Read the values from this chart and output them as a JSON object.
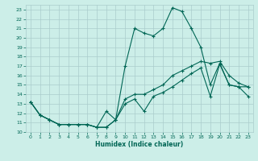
{
  "xlabel": "Humidex (Indice chaleur)",
  "background_color": "#cceee8",
  "grid_color": "#aacccc",
  "line_color": "#006655",
  "xlim": [
    -0.5,
    23.5
  ],
  "ylim": [
    10,
    23.5
  ],
  "yticks": [
    10,
    11,
    12,
    13,
    14,
    15,
    16,
    17,
    18,
    19,
    20,
    21,
    22,
    23
  ],
  "xticks": [
    0,
    1,
    2,
    3,
    4,
    5,
    6,
    7,
    8,
    9,
    10,
    11,
    12,
    13,
    14,
    15,
    16,
    17,
    18,
    19,
    20,
    21,
    22,
    23
  ],
  "line1_x": [
    0,
    1,
    2,
    3,
    4,
    5,
    6,
    7,
    8,
    9,
    10,
    11,
    12,
    13,
    14,
    15,
    16,
    17,
    18,
    19,
    20,
    21,
    22,
    23
  ],
  "line1_y": [
    13.2,
    11.8,
    11.3,
    10.8,
    10.8,
    10.8,
    10.8,
    10.5,
    10.5,
    11.3,
    17.0,
    21.0,
    20.5,
    20.2,
    21.0,
    23.2,
    22.8,
    21.0,
    19.0,
    15.0,
    17.3,
    15.0,
    14.8,
    14.8
  ],
  "line2_x": [
    0,
    1,
    2,
    3,
    4,
    5,
    6,
    7,
    8,
    9,
    10,
    11,
    12,
    13,
    14,
    15,
    16,
    17,
    18,
    19,
    20,
    21,
    22,
    23
  ],
  "line2_y": [
    13.2,
    11.8,
    11.3,
    10.8,
    10.8,
    10.8,
    10.8,
    10.5,
    10.5,
    11.3,
    13.5,
    14.0,
    14.0,
    14.5,
    15.0,
    16.0,
    16.5,
    17.0,
    17.5,
    17.3,
    17.5,
    16.0,
    15.2,
    14.8
  ],
  "line3_x": [
    0,
    1,
    2,
    3,
    4,
    5,
    6,
    7,
    8,
    9,
    10,
    11,
    12,
    13,
    14,
    15,
    16,
    17,
    18,
    19,
    20,
    21,
    22,
    23
  ],
  "line3_y": [
    13.2,
    11.8,
    11.3,
    10.8,
    10.8,
    10.8,
    10.8,
    10.5,
    12.2,
    11.3,
    13.0,
    13.5,
    12.2,
    13.8,
    14.2,
    14.8,
    15.5,
    16.2,
    16.8,
    13.8,
    17.2,
    15.0,
    14.8,
    13.8
  ]
}
